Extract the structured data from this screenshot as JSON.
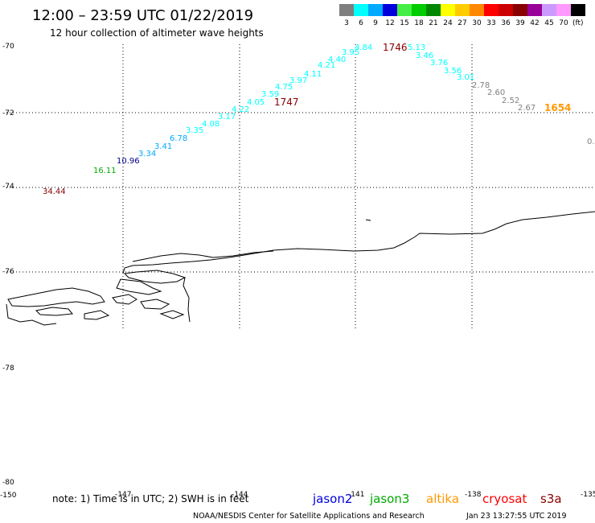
{
  "header": {
    "title": "12:00 – 23:59 UTC 01/22/2019",
    "subtitle": "12 hour collection of altimeter wave heights"
  },
  "legend": {
    "unit": "(ft)",
    "bins": [
      {
        "label": "3",
        "color": "#7f7f7f"
      },
      {
        "label": "6",
        "color": "#00ffff"
      },
      {
        "label": "9",
        "color": "#00aaff"
      },
      {
        "label": "12",
        "color": "#0000dd"
      },
      {
        "label": "15",
        "color": "#44ee44"
      },
      {
        "label": "18",
        "color": "#00cc00"
      },
      {
        "label": "21",
        "color": "#008800"
      },
      {
        "label": "24",
        "color": "#ffff00"
      },
      {
        "label": "27",
        "color": "#ffcc00"
      },
      {
        "label": "30",
        "color": "#ff8800"
      },
      {
        "label": "33",
        "color": "#ff0000"
      },
      {
        "label": "36",
        "color": "#cc0000"
      },
      {
        "label": "39",
        "color": "#880000"
      },
      {
        "label": "42",
        "color": "#990099"
      },
      {
        "label": "45",
        "color": "#cc99ff"
      },
      {
        "label": "70",
        "color": "#ff99ff"
      },
      {
        "label": "",
        "color": "#000000"
      }
    ]
  },
  "axes": {
    "lat_labels": [
      "-70",
      "-72",
      "-74",
      "-76",
      "-78",
      "-80"
    ],
    "lon_labels": [
      "-150",
      "-147",
      "-144",
      "-141",
      "-138",
      "-135"
    ]
  },
  "wave_labels": [
    {
      "text": "34.44",
      "color": "#880000"
    },
    {
      "text": "16.11",
      "color": "#00aa00"
    },
    {
      "text": "10.96",
      "color": "#000088"
    },
    {
      "text": "3.34",
      "color": "#00aaff"
    },
    {
      "text": "3.41",
      "color": "#00aaff"
    },
    {
      "text": "6.78",
      "color": "#00aaff"
    },
    {
      "text": "3.35",
      "color": "#00ffff"
    },
    {
      "text": "4.08",
      "color": "#00ffff"
    },
    {
      "text": "3.17",
      "color": "#00ffff"
    },
    {
      "text": "4.22",
      "color": "#00ffff"
    },
    {
      "text": "4.05",
      "color": "#00ffff"
    },
    {
      "text": "3.59",
      "color": "#00ffff"
    },
    {
      "text": "4.75",
      "color": "#00ffff"
    },
    {
      "text": "3.97",
      "color": "#00ffff"
    },
    {
      "text": "4.11",
      "color": "#00ffff"
    },
    {
      "text": "4.21",
      "color": "#00ffff"
    },
    {
      "text": "4.40",
      "color": "#00ffff"
    },
    {
      "text": "3.95",
      "color": "#00ffff"
    },
    {
      "text": "4.84",
      "color": "#00ffff"
    },
    {
      "text": "5.13",
      "color": "#00ffff"
    },
    {
      "text": "3.46",
      "color": "#00ffff"
    },
    {
      "text": "3.76",
      "color": "#00ffff"
    },
    {
      "text": "3.56",
      "color": "#00ffff"
    },
    {
      "text": "3.01",
      "color": "#00ffff"
    },
    {
      "text": "2.78",
      "color": "#7f7f7f"
    },
    {
      "text": "2.60",
      "color": "#7f7f7f"
    },
    {
      "text": "2.52",
      "color": "#7f7f7f"
    },
    {
      "text": "2.67",
      "color": "#7f7f7f"
    },
    {
      "text": "0.",
      "color": "#7f7f7f"
    }
  ],
  "time_labels": [
    {
      "text": "1747",
      "color": "#880000"
    },
    {
      "text": "1746",
      "color": "#880000"
    },
    {
      "text": "1654",
      "color": "#ff9900"
    }
  ],
  "footer": {
    "note": "note: 1) Time is in UTC; 2) SWH is in feet",
    "satellites": [
      {
        "name": "jason2",
        "color": "#0000dd"
      },
      {
        "name": "jason3",
        "color": "#00aa00"
      },
      {
        "name": "altika",
        "color": "#ff9900"
      },
      {
        "name": "cryosat",
        "color": "#ff0000"
      },
      {
        "name": "s3a",
        "color": "#880000"
      }
    ],
    "credit": "NOAA/NESDIS Center for Satellite Applications and Research",
    "timestamp": "Jan 23 13:27:55 UTC 2019"
  }
}
